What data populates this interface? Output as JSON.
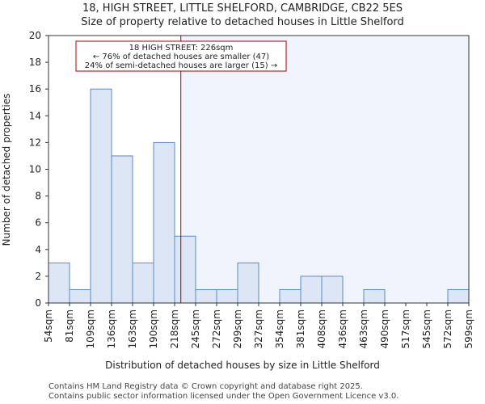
{
  "chart_data": {
    "type": "bar",
    "title": "18, HIGH STREET, LITTLE SHELFORD, CAMBRIDGE, CB22 5ES",
    "subtitle": "Size of property relative to detached houses in Little Shelford",
    "xlabel": "Distribution of detached houses by size in Little Shelford",
    "ylabel": "Number of detached properties",
    "ylim": [
      0,
      20
    ],
    "yticks": [
      0,
      2,
      4,
      6,
      8,
      10,
      12,
      14,
      16,
      18,
      20
    ],
    "bin_edges": [
      "54sqm",
      "81sqm",
      "109sqm",
      "136sqm",
      "163sqm",
      "190sqm",
      "218sqm",
      "245sqm",
      "272sqm",
      "299sqm",
      "327sqm",
      "354sqm",
      "381sqm",
      "408sqm",
      "436sqm",
      "463sqm",
      "490sqm",
      "517sqm",
      "545sqm",
      "572sqm",
      "599sqm"
    ],
    "values": [
      3,
      1,
      16,
      11,
      3,
      12,
      5,
      1,
      1,
      3,
      0,
      1,
      2,
      2,
      0,
      1,
      0,
      0,
      0,
      1
    ],
    "bar_color": "#dce6f5",
    "bar_edge_color": "#5a8ac6",
    "highlight_color": "#f0f4fc",
    "marker": {
      "value_sqm": 226,
      "color": "#aa0000",
      "lines": [
        "18 HIGH STREET: 226sqm",
        "← 76% of detached houses are smaller (47)",
        "24% of semi-detached houses are larger (15) →"
      ]
    }
  },
  "footer": {
    "line1": "Contains HM Land Registry data © Crown copyright and database right 2025.",
    "line2": "Contains public sector information licensed under the Open Government Licence v3.0."
  }
}
